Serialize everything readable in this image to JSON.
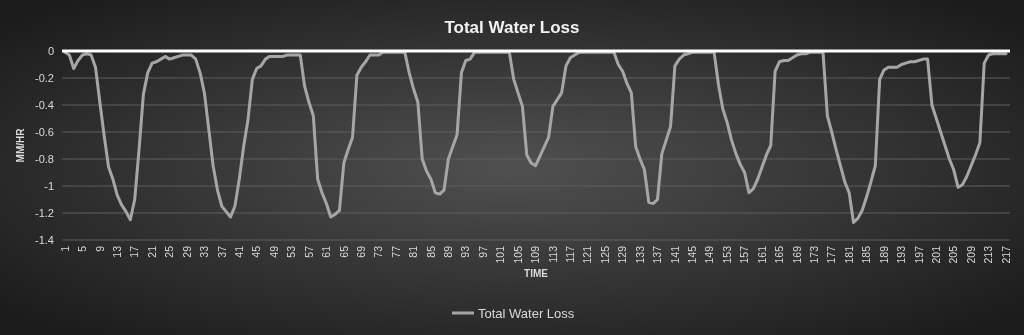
{
  "chart_data": {
    "type": "line",
    "title": "Total Water Loss",
    "xlabel": "TIME",
    "ylabel": "MM/HR",
    "categories": [
      "1",
      null,
      null,
      null,
      "5",
      null,
      null,
      null,
      "9",
      null,
      null,
      null,
      "13",
      null,
      null,
      null,
      "17",
      null,
      null,
      null,
      "21",
      null,
      null,
      null,
      "25",
      null,
      null,
      null,
      "29",
      null,
      null,
      null,
      "33",
      null,
      null,
      null,
      "37",
      null,
      null,
      null,
      "41",
      null,
      null,
      null,
      "45",
      null,
      null,
      null,
      "49",
      null,
      null,
      null,
      "53",
      null,
      null,
      null,
      "57",
      null,
      null,
      null,
      "61",
      null,
      null,
      null,
      "65",
      null,
      null,
      null,
      "69",
      null,
      null,
      null,
      "73",
      null,
      null,
      null,
      "77",
      null,
      null,
      null,
      "81",
      null,
      null,
      null,
      "85",
      null,
      null,
      null,
      "89",
      null,
      null,
      null,
      "93",
      null,
      null,
      null,
      "97",
      null,
      null,
      null,
      "101",
      null,
      null,
      null,
      "105",
      null,
      null,
      null,
      "109",
      null,
      null,
      null,
      "113",
      null,
      null,
      null,
      "117",
      null,
      null,
      null,
      "121",
      null,
      null,
      null,
      "125",
      null,
      null,
      null,
      "129",
      null,
      null,
      null,
      "133",
      null,
      null,
      null,
      "137",
      null,
      null,
      null,
      "141",
      null,
      null,
      null,
      "145",
      null,
      null,
      null,
      "149",
      null,
      null,
      null,
      "153",
      null,
      null,
      null,
      "157",
      null,
      null,
      null,
      "161",
      null,
      null,
      null,
      "165",
      null,
      null,
      null,
      "169",
      null,
      null,
      null,
      "173",
      null,
      null,
      null,
      "177",
      null,
      null,
      null,
      "181",
      null,
      null,
      null,
      "185",
      null,
      null,
      null,
      "189",
      null,
      null,
      null,
      "193",
      null,
      null,
      null,
      "197",
      null,
      null,
      null,
      "201",
      null,
      null,
      null,
      "205",
      null,
      null,
      null,
      "209",
      null,
      null,
      null,
      "213",
      null,
      null,
      null,
      "217"
    ],
    "series": [
      {
        "name": "Total Water Loss",
        "color": "#a6a6a6",
        "values": [
          -0.01,
          -0.03,
          -0.13,
          -0.07,
          -0.03,
          -0.02,
          -0.03,
          -0.12,
          -0.38,
          -0.63,
          -0.86,
          -0.95,
          -1.07,
          -1.14,
          -1.19,
          -1.25,
          -1.1,
          -0.73,
          -0.32,
          -0.16,
          -0.09,
          -0.08,
          -0.06,
          -0.04,
          -0.06,
          -0.05,
          -0.04,
          -0.03,
          -0.03,
          -0.03,
          -0.06,
          -0.16,
          -0.31,
          -0.58,
          -0.85,
          -1.03,
          -1.15,
          -1.19,
          -1.23,
          -1.15,
          -0.95,
          -0.71,
          -0.51,
          -0.21,
          -0.13,
          -0.11,
          -0.06,
          -0.04,
          -0.04,
          -0.04,
          -0.04,
          -0.03,
          -0.03,
          -0.03,
          -0.03,
          -0.26,
          -0.38,
          -0.48,
          -0.95,
          -1.05,
          -1.13,
          -1.23,
          -1.21,
          -1.18,
          -0.83,
          -0.73,
          -0.64,
          -0.18,
          -0.12,
          -0.08,
          -0.03,
          -0.03,
          -0.03,
          -0.01,
          -0.01,
          -0.01,
          -0.01,
          -0.01,
          -0.01,
          -0.16,
          -0.28,
          -0.38,
          -0.8,
          -0.89,
          -0.95,
          -1.05,
          -1.06,
          -1.03,
          -0.8,
          -0.71,
          -0.62,
          -0.16,
          -0.07,
          -0.06,
          -0.01,
          -0.01,
          -0.01,
          -0.01,
          -0.01,
          -0.01,
          -0.01,
          -0.01,
          -0.01,
          -0.21,
          -0.31,
          -0.41,
          -0.77,
          -0.83,
          -0.85,
          -0.78,
          -0.71,
          -0.64,
          -0.41,
          -0.36,
          -0.31,
          -0.11,
          -0.05,
          -0.03,
          -0.01,
          -0.01,
          -0.01,
          -0.01,
          -0.01,
          -0.01,
          -0.01,
          -0.01,
          -0.01,
          -0.1,
          -0.15,
          -0.24,
          -0.31,
          -0.71,
          -0.8,
          -0.88,
          -1.12,
          -1.13,
          -1.1,
          -0.76,
          -0.66,
          -0.56,
          -0.11,
          -0.06,
          -0.03,
          -0.02,
          -0.01,
          -0.01,
          -0.01,
          -0.01,
          -0.01,
          -0.01,
          -0.25,
          -0.43,
          -0.53,
          -0.66,
          -0.76,
          -0.84,
          -0.9,
          -1.05,
          -1.02,
          -0.95,
          -0.86,
          -0.77,
          -0.7,
          -0.15,
          -0.08,
          -0.07,
          -0.07,
          -0.05,
          -0.03,
          -0.02,
          -0.02,
          -0.01,
          -0.01,
          -0.01,
          -0.01,
          -0.48,
          -0.6,
          -0.73,
          -0.85,
          -0.97,
          -1.05,
          -1.27,
          -1.24,
          -1.18,
          -1.08,
          -0.97,
          -0.85,
          -0.21,
          -0.14,
          -0.12,
          -0.12,
          -0.12,
          -0.1,
          -0.09,
          -0.08,
          -0.08,
          -0.07,
          -0.06,
          -0.06,
          -0.4,
          -0.5,
          -0.6,
          -0.7,
          -0.8,
          -0.88,
          -1.01,
          -0.99,
          -0.93,
          -0.85,
          -0.77,
          -0.68,
          -0.09,
          -0.03,
          -0.02,
          -0.02,
          -0.02,
          -0.02
        ]
      }
    ],
    "ylim": [
      -1.4,
      0
    ],
    "yticks": [
      0,
      -0.2,
      -0.4,
      -0.6,
      -0.8,
      -1,
      -1.2,
      -1.4
    ],
    "grid": "y",
    "legend": "bottom",
    "marker": "none",
    "line_style": "solid"
  }
}
